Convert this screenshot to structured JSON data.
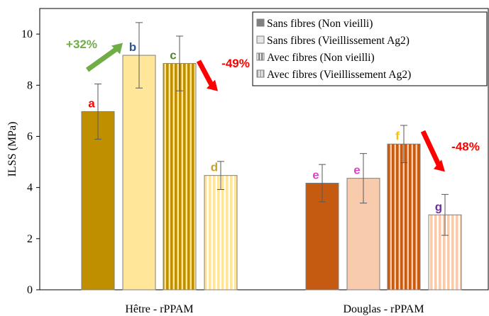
{
  "chart_data": {
    "type": "bar",
    "title": "",
    "xlabel": "",
    "ylabel": "ILSS (MPa)",
    "ylim": [
      0,
      11
    ],
    "yticks": [
      0,
      2,
      4,
      6,
      8,
      10
    ],
    "grid": false,
    "legend_position": "top-right",
    "categories": [
      "Hêtre - rPPAM",
      "Douglas - rPPAM"
    ],
    "series": [
      {
        "name": "Sans fibres (Non vieilli)",
        "values": [
          6.97,
          4.17
        ],
        "errors": [
          1.08,
          0.73
        ],
        "letters": [
          "a",
          "e"
        ],
        "pattern": "solid",
        "colors": [
          "#bf8f00",
          "#c55a11"
        ]
      },
      {
        "name": "Sans fibres (Vieillissement Ag2)",
        "values": [
          9.17,
          4.36
        ],
        "errors": [
          1.28,
          0.97
        ],
        "letters": [
          "b",
          "e"
        ],
        "pattern": "solid",
        "colors": [
          "#ffe699",
          "#f8cbad"
        ]
      },
      {
        "name": "Avec fibres (Non vieilli)",
        "values": [
          8.85,
          5.7
        ],
        "errors": [
          1.07,
          0.73
        ],
        "letters": [
          "c",
          "f"
        ],
        "pattern": "stripes",
        "colors": [
          "#bf8f00",
          "#c55a11"
        ]
      },
      {
        "name": "Avec fibres (Vieillissement Ag2)",
        "values": [
          4.47,
          2.93
        ],
        "errors": [
          0.55,
          0.8
        ],
        "letters": [
          "d",
          "g"
        ],
        "pattern": "stripes",
        "colors": [
          "#ffe699",
          "#f8cbad"
        ]
      }
    ],
    "letter_colors": {
      "a": "#ff0000",
      "b": "#2f5597",
      "c": "#548235",
      "d": "#c9a227",
      "e": "#e040c8",
      "f": "#ffc000",
      "g": "#7030a0"
    },
    "annotations": [
      {
        "text": "+32%",
        "color": "#70ad47",
        "arrow": "up"
      },
      {
        "text": "-49%",
        "color": "#ff0000",
        "arrow": "down"
      },
      {
        "text": "-48%",
        "color": "#ff0000",
        "arrow": "down"
      }
    ]
  }
}
